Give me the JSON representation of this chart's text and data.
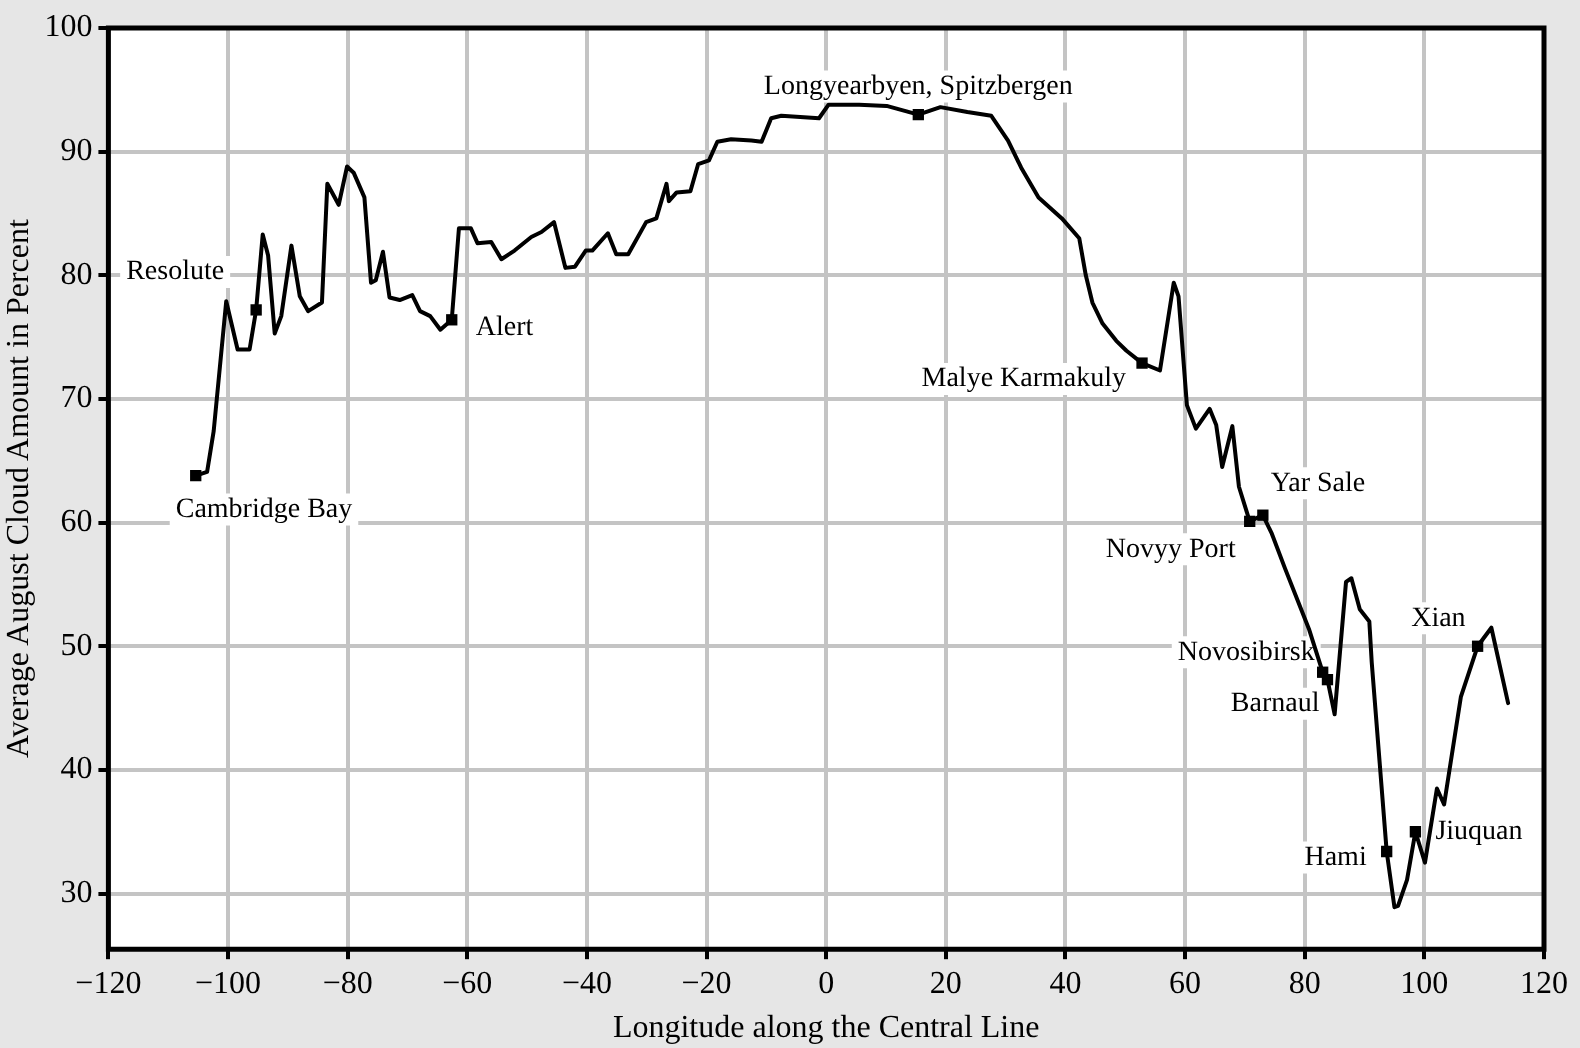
{
  "chart_data": {
    "type": "line",
    "xlabel": "Longitude along the Central Line",
    "ylabel": "Average August Cloud Amount in Percent",
    "xlim": [
      -120,
      120
    ],
    "ylim": [
      25.5,
      100
    ],
    "xticks": [
      {
        "value": -120,
        "label": "−120"
      },
      {
        "value": -100,
        "label": "−100"
      },
      {
        "value": -80,
        "label": "−80"
      },
      {
        "value": -60,
        "label": "−60"
      },
      {
        "value": -40,
        "label": "−40"
      },
      {
        "value": -20,
        "label": "−20"
      },
      0,
      20,
      40,
      60,
      80,
      100,
      120
    ],
    "yticks": [
      30,
      40,
      50,
      60,
      70,
      80,
      90,
      100
    ],
    "grid": true,
    "legend": false,
    "series": [
      {
        "color": "#000000",
        "marker": "none",
        "line_style": "solid",
        "x": [
          -105.4,
          -103.5,
          -102.4,
          -100.3,
          -98.4,
          -96.4,
          -95.3,
          -94.2,
          -93.3,
          -92.2,
          -91.1,
          -89.4,
          -88.0,
          -86.6,
          -84.3,
          -83.4,
          -81.5,
          -80.1,
          -79.0,
          -77.2,
          -76.1,
          -75.3,
          -74.1,
          -73.0,
          -71.3,
          -69.2,
          -67.9,
          -66.2,
          -64.5,
          -62.6,
          -61.4,
          -59.4,
          -58.3,
          -56.0,
          -54.3,
          -52.1,
          -49.3,
          -47.6,
          -45.5,
          -43.6,
          -42.0,
          -40.2,
          -39.1,
          -36.5,
          -35.1,
          -33.1,
          -30.1,
          -28.4,
          -26.7,
          -26.3,
          -25.0,
          -22.7,
          -21.4,
          -19.6,
          -18.2,
          -15.9,
          -12.5,
          -10.8,
          -9.2,
          -7.5,
          -1.2,
          0.4,
          5.5,
          10.1,
          15.4,
          19.1,
          23.6,
          27.6,
          30.4,
          32.6,
          35.5,
          39.4,
          42.3,
          43.4,
          44.5,
          46.2,
          48.5,
          50.2,
          52.8,
          55.8,
          58.1,
          58.9,
          60.3,
          61.8,
          64.1,
          65.2,
          66.2,
          67.9,
          69.0,
          70.8,
          73.0,
          74.5,
          76.7,
          80.7,
          83.0,
          83.8,
          85.0,
          86.9,
          87.8,
          89.2,
          90.8,
          91.2,
          93.7,
          95.0,
          95.6,
          97.1,
          98.5,
          100.1,
          102.1,
          103.3,
          106.1,
          108.9,
          111.2,
          114.0
        ],
        "values": [
          63.8,
          64.1,
          67.4,
          77.9,
          74.0,
          74.0,
          77.2,
          83.3,
          81.6,
          75.3,
          76.7,
          82.4,
          78.3,
          77.1,
          77.8,
          87.4,
          85.7,
          88.8,
          88.3,
          86.3,
          79.4,
          79.6,
          81.9,
          78.2,
          78.0,
          78.4,
          77.1,
          76.7,
          75.6,
          76.4,
          83.8,
          83.8,
          82.6,
          82.7,
          81.3,
          82.0,
          83.1,
          83.5,
          84.3,
          80.6,
          80.7,
          82.0,
          82.0,
          83.4,
          81.7,
          81.7,
          84.3,
          84.6,
          87.4,
          86.0,
          86.7,
          86.8,
          89.0,
          89.3,
          90.8,
          91.0,
          90.9,
          90.8,
          92.7,
          92.9,
          92.7,
          93.8,
          93.8,
          93.7,
          93.0,
          93.6,
          93.2,
          92.9,
          90.9,
          88.7,
          86.3,
          84.6,
          83.0,
          80.0,
          77.8,
          76.1,
          74.7,
          73.9,
          72.9,
          72.3,
          79.4,
          78.3,
          69.5,
          67.6,
          69.2,
          67.9,
          64.5,
          67.8,
          62.9,
          60.1,
          60.6,
          59.1,
          56.3,
          51.4,
          47.9,
          47.3,
          44.5,
          55.2,
          55.5,
          53.0,
          52.0,
          48.7,
          33.4,
          28.9,
          29.0,
          31.1,
          35.0,
          32.5,
          38.5,
          37.2,
          45.9,
          50.0,
          51.5,
          45.4
        ]
      },
      {
        "type": "scatter",
        "color": "#000000",
        "marker": "square",
        "x": [
          -105.4,
          -95.3,
          -62.6,
          15.4,
          52.8,
          70.8,
          73.0,
          83.0,
          83.8,
          93.7,
          98.5,
          108.9
        ],
        "values": [
          63.8,
          77.2,
          76.4,
          93.0,
          72.9,
          60.1,
          60.6,
          47.9,
          47.3,
          33.4,
          35.0,
          50.0
        ]
      }
    ],
    "annotations": [
      {
        "text": "Cambridge Bay",
        "x": -105.4,
        "y": 63.8
      },
      {
        "text": "Resolute",
        "x": -95.3,
        "y": 77.2
      },
      {
        "text": "Alert",
        "x": -62.6,
        "y": 76.4
      },
      {
        "text": "Longyearbyen, Spitzbergen",
        "x": 15.4,
        "y": 93.0
      },
      {
        "text": "Malye Karmakuly",
        "x": 52.8,
        "y": 72.9
      },
      {
        "text": "Novyy Port",
        "x": 70.8,
        "y": 60.1
      },
      {
        "text": "Yar Sale",
        "x": 73.0,
        "y": 60.6
      },
      {
        "text": "Novosibirsk",
        "x": 83.0,
        "y": 47.9
      },
      {
        "text": "Barnaul",
        "x": 83.8,
        "y": 47.3
      },
      {
        "text": "Hami",
        "x": 93.7,
        "y": 33.4
      },
      {
        "text": "Jiuquan",
        "x": 98.5,
        "y": 35.0
      },
      {
        "text": "Xian",
        "x": 108.9,
        "y": 50.0
      }
    ]
  }
}
